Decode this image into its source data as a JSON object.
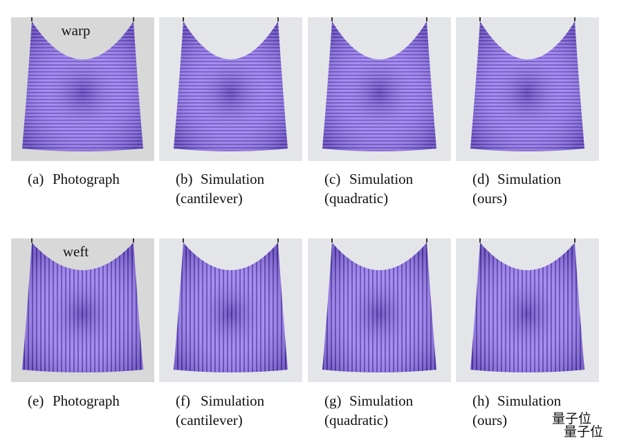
{
  "figure": {
    "rows": [
      {
        "label": "warp",
        "panels": [
          {
            "tag": "(a)",
            "lines": [
              "Photograph"
            ]
          },
          {
            "tag": "(b)",
            "lines": [
              "Simulation",
              "(cantilever)"
            ]
          },
          {
            "tag": "(c)",
            "lines": [
              "Simulation",
              "(quadratic)"
            ]
          },
          {
            "tag": "(d)",
            "lines": [
              "Simulation",
              "(ours)"
            ]
          }
        ]
      },
      {
        "label": "weft",
        "panels": [
          {
            "tag": "(e)",
            "lines": [
              "Photograph"
            ]
          },
          {
            "tag": "(f)",
            "lines": [
              "Simulation",
              "(cantilever)"
            ]
          },
          {
            "tag": "(g)",
            "lines": [
              "Simulation",
              "(quadratic)"
            ]
          },
          {
            "tag": "(h)",
            "lines": [
              "Simulation",
              "(ours)"
            ]
          }
        ]
      }
    ],
    "watermark": "量子位"
  }
}
